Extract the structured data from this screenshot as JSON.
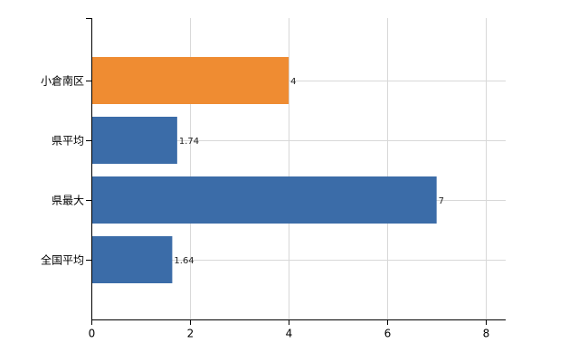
{
  "chart_data": {
    "type": "barh",
    "categories": [
      "小倉南区",
      "県平均",
      "県最大",
      "全国平均"
    ],
    "values": [
      4,
      1.74,
      7,
      1.64
    ],
    "colors": [
      "#ef8c32",
      "#3b6ca8",
      "#3b6ca8",
      "#3b6ca8"
    ],
    "xlim": [
      0,
      8.4
    ],
    "xticks": [
      0,
      2,
      4,
      6,
      8
    ],
    "grid": true
  }
}
